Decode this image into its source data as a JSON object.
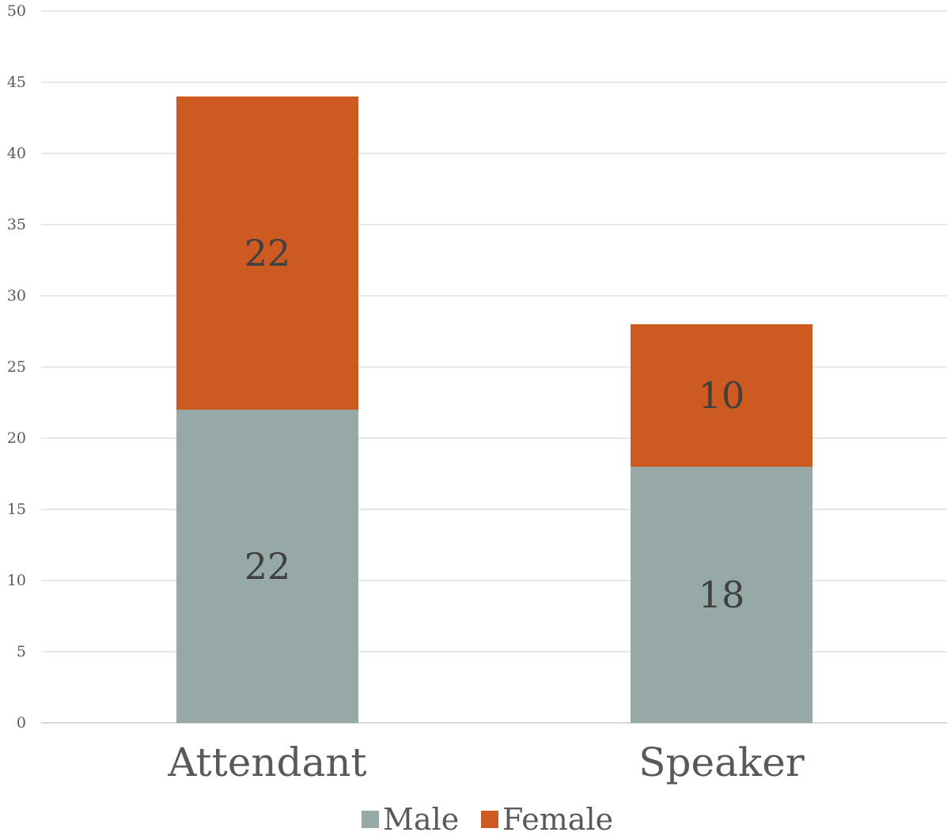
{
  "chart_data": {
    "type": "bar",
    "stacked": true,
    "categories": [
      "Attendant",
      "Speaker"
    ],
    "series": [
      {
        "name": "Male",
        "values": [
          22,
          18
        ],
        "color": "#97a9a7"
      },
      {
        "name": "Female",
        "values": [
          22,
          10
        ],
        "color": "#cc5a21"
      }
    ],
    "ylim": [
      0,
      50
    ],
    "yticks": [
      "0",
      "5",
      "10",
      "15",
      "20",
      "25",
      "30",
      "35",
      "40",
      "45",
      "50"
    ],
    "grid": true,
    "legend_position": "bottom",
    "data_labels": true
  }
}
